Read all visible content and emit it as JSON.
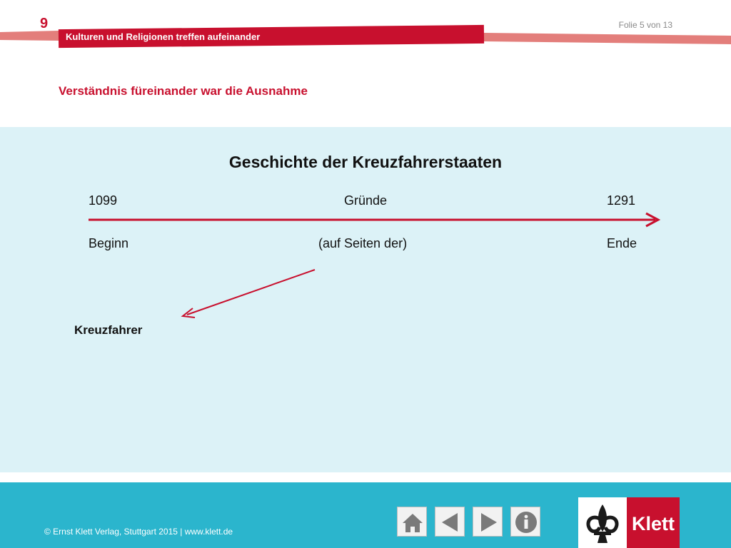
{
  "header": {
    "chapter_number": "9",
    "chapter_title": "Kulturen und Religionen treffen aufeinander",
    "slide_counter": "Folie 5 von 13",
    "section_heading": "Verständnis füreinander war die Ausnahme"
  },
  "slide": {
    "title": "Geschichte der Kreuzfahrerstaaten",
    "timeline": {
      "start_year": "1099",
      "center_top": "Gründe",
      "end_year": "1291",
      "start_label": "Beginn",
      "center_bottom": "(auf Seiten der)",
      "end_label": "Ende"
    },
    "branch_label": "Kreuzfahrer"
  },
  "footer": {
    "copyright": "© Ernst Klett Verlag, Stuttgart 2015 | www.klett.de",
    "nav": [
      {
        "icon": "home-icon"
      },
      {
        "icon": "previous-arrow-icon"
      },
      {
        "icon": "next-arrow-icon"
      },
      {
        "icon": "info-icon"
      }
    ],
    "logo_text": "Klett"
  },
  "colors": {
    "accent": "#c8102e",
    "panel": "#dcf2f7",
    "footer": "#2bb5cd"
  }
}
